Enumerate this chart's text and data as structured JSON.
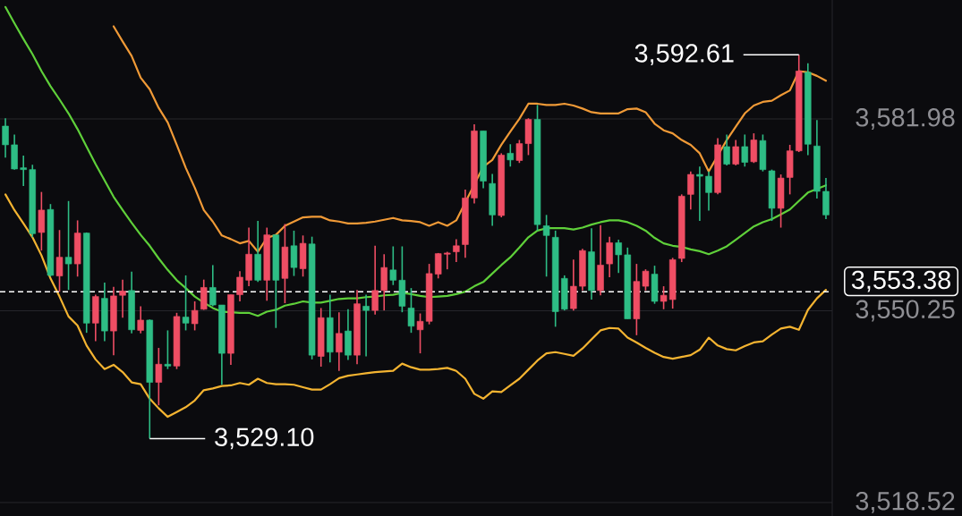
{
  "chart_data": {
    "type": "candlestick",
    "categories": [
      null,
      null,
      null,
      null,
      null,
      null,
      null,
      null,
      null,
      null,
      null,
      null,
      null,
      null,
      null,
      null,
      null,
      null,
      null,
      null,
      null,
      null,
      null,
      null,
      null,
      null,
      null,
      null,
      null,
      null,
      null,
      null,
      null,
      null,
      null,
      null,
      null,
      null,
      null,
      null,
      null,
      null,
      null,
      null,
      null,
      null,
      null,
      null,
      null,
      null,
      null,
      null,
      null,
      null,
      null,
      null,
      null,
      null,
      null,
      null,
      null,
      null,
      null,
      null,
      null,
      null,
      null,
      null,
      null,
      null,
      null,
      null,
      null,
      null,
      null,
      null,
      null,
      null,
      null,
      null,
      null,
      null,
      null,
      null,
      null,
      null,
      null,
      null,
      null,
      null,
      null,
      null
    ],
    "ohlc": [
      [
        3580.8,
        3582.1,
        3575.6,
        3577.7
      ],
      [
        3577.7,
        3579.4,
        3573.6,
        3573.7
      ],
      [
        3573.9,
        3575.9,
        3570.9,
        3573.6
      ],
      [
        3573.6,
        3574.4,
        3562.4,
        3563.0
      ],
      [
        3563.2,
        3569.9,
        3560.2,
        3566.9
      ],
      [
        3567.0,
        3567.9,
        3555.9,
        3556.1
      ],
      [
        3556.0,
        3563.6,
        3553.4,
        3559.1
      ],
      [
        3559.1,
        3568.4,
        3553.7,
        3558.0
      ],
      [
        3558.0,
        3565.2,
        3555.9,
        3563.1
      ],
      [
        3563.1,
        3563.2,
        3546.6,
        3548.2
      ],
      [
        3548.2,
        3552.9,
        3545.2,
        3552.6
      ],
      [
        3552.3,
        3554.9,
        3545.2,
        3546.9
      ],
      [
        3546.9,
        3554.2,
        3542.9,
        3552.7
      ],
      [
        3552.8,
        3555.4,
        3549.1,
        3553.5
      ],
      [
        3553.6,
        3556.7,
        3546.5,
        3547.1
      ],
      [
        3547.0,
        3551.0,
        3546.5,
        3548.7
      ],
      [
        3548.7,
        3548.8,
        3529.1,
        3538.4
      ],
      [
        3538.4,
        3544.1,
        3534.6,
        3541.4
      ],
      [
        3541.4,
        3547.0,
        3540.6,
        3541.1
      ],
      [
        3541.1,
        3549.9,
        3540.6,
        3549.3
      ],
      [
        3549.2,
        3556.1,
        3547.0,
        3548.2
      ],
      [
        3548.1,
        3551.8,
        3547.0,
        3550.3
      ],
      [
        3550.5,
        3555.4,
        3550.4,
        3554.1
      ],
      [
        3554.1,
        3557.8,
        3551.0,
        3551.2
      ],
      [
        3551.2,
        3551.2,
        3538.0,
        3543.2
      ],
      [
        3543.2,
        3552.9,
        3541.3,
        3552.9
      ],
      [
        3552.9,
        3556.8,
        3551.8,
        3555.8
      ],
      [
        3555.3,
        3564.0,
        3554.3,
        3559.6
      ],
      [
        3559.6,
        3565.1,
        3555.0,
        3555.3
      ],
      [
        3555.3,
        3564.0,
        3551.9,
        3562.8
      ],
      [
        3562.8,
        3562.8,
        3547.4,
        3555.3
      ],
      [
        3555.6,
        3564.6,
        3551.5,
        3560.8
      ],
      [
        3561.0,
        3563.5,
        3556.0,
        3557.4
      ],
      [
        3557.2,
        3562.7,
        3555.9,
        3561.4
      ],
      [
        3561.3,
        3562.5,
        3542.2,
        3542.9
      ],
      [
        3542.7,
        3550.7,
        3541.0,
        3549.1
      ],
      [
        3549.1,
        3552.9,
        3541.7,
        3543.4
      ],
      [
        3543.4,
        3550.0,
        3540.3,
        3546.5
      ],
      [
        3546.9,
        3550.5,
        3542.1,
        3542.9
      ],
      [
        3542.9,
        3553.7,
        3541.4,
        3551.4
      ],
      [
        3551.0,
        3552.9,
        3542.7,
        3550.3
      ],
      [
        3550.3,
        3561.0,
        3549.6,
        3553.6
      ],
      [
        3553.6,
        3559.6,
        3550.3,
        3557.4
      ],
      [
        3557.0,
        3560.9,
        3554.5,
        3555.3
      ],
      [
        3555.3,
        3560.9,
        3550.0,
        3551.0
      ],
      [
        3550.7,
        3554.0,
        3546.6,
        3547.7
      ],
      [
        3547.1,
        3549.8,
        3543.2,
        3548.5
      ],
      [
        3548.5,
        3558.0,
        3548.0,
        3556.4
      ],
      [
        3556.3,
        3559.8,
        3555.6,
        3559.7
      ],
      [
        3559.6,
        3560.0,
        3557.1,
        3559.8
      ],
      [
        3560.0,
        3562.1,
        3558.3,
        3561.0
      ],
      [
        3561.2,
        3570.3,
        3559.0,
        3568.9
      ],
      [
        3568.9,
        3581.1,
        3568.0,
        3580.0
      ],
      [
        3580.0,
        3580.0,
        3570.5,
        3571.7
      ],
      [
        3571.3,
        3572.9,
        3564.3,
        3566.1
      ],
      [
        3566.0,
        3576.3,
        3565.7,
        3576.0
      ],
      [
        3576.3,
        3577.8,
        3574.1,
        3575.2
      ],
      [
        3575.1,
        3578.5,
        3574.7,
        3577.9
      ],
      [
        3577.9,
        3582.1,
        3576.0,
        3581.9
      ],
      [
        3581.9,
        3584.3,
        3563.5,
        3564.5
      ],
      [
        3564.3,
        3566.1,
        3555.9,
        3562.7
      ],
      [
        3562.4,
        3563.5,
        3547.6,
        3550.1
      ],
      [
        3555.6,
        3556.1,
        3550.3,
        3550.5
      ],
      [
        3550.6,
        3558.7,
        3550.3,
        3554.3
      ],
      [
        3554.3,
        3560.5,
        3553.6,
        3560.2
      ],
      [
        3560.0,
        3563.9,
        3552.1,
        3553.6
      ],
      [
        3553.6,
        3564.4,
        3552.8,
        3557.8
      ],
      [
        3558.0,
        3562.5,
        3555.8,
        3561.5
      ],
      [
        3561.5,
        3562.0,
        3556.5,
        3559.5
      ],
      [
        3559.5,
        3560.7,
        3548.9,
        3548.9
      ],
      [
        3548.9,
        3558.0,
        3546.2,
        3555.1
      ],
      [
        3554.3,
        3557.1,
        3553.6,
        3556.8
      ],
      [
        3556.3,
        3557.7,
        3551.4,
        3551.8
      ],
      [
        3551.8,
        3554.3,
        3550.5,
        3552.8
      ],
      [
        3552.1,
        3559.0,
        3550.6,
        3558.7
      ],
      [
        3558.9,
        3569.5,
        3558.3,
        3569.2
      ],
      [
        3569.5,
        3573.3,
        3567.0,
        3572.8
      ],
      [
        3572.8,
        3574.1,
        3565.1,
        3572.5
      ],
      [
        3572.5,
        3573.3,
        3566.8,
        3569.8
      ],
      [
        3569.8,
        3578.8,
        3569.5,
        3577.7
      ],
      [
        3577.4,
        3579.4,
        3574.3,
        3574.5
      ],
      [
        3574.5,
        3578.5,
        3574.3,
        3577.4
      ],
      [
        3577.4,
        3579.4,
        3574.1,
        3574.8
      ],
      [
        3574.9,
        3579.6,
        3574.7,
        3578.5
      ],
      [
        3578.4,
        3579.4,
        3573.3,
        3573.6
      ],
      [
        3573.4,
        3573.6,
        3565.1,
        3567.2
      ],
      [
        3567.2,
        3572.8,
        3564.0,
        3572.2
      ],
      [
        3572.3,
        3577.7,
        3569.5,
        3576.7
      ],
      [
        3576.7,
        3592.61,
        3576.5,
        3589.9
      ],
      [
        3589.7,
        3591.2,
        3576.0,
        3577.8
      ],
      [
        3577.5,
        3581.8,
        3568.8,
        3570.0
      ],
      [
        3570.0,
        3572.2,
        3565.4,
        3566.1
      ]
    ],
    "colors": [
      "#2ebd85",
      "#2ebd85",
      "#2ebd85",
      "#2ebd85",
      "#ef4e64",
      "#2ebd85",
      "#ef4e64",
      "#2ebd85",
      "#ef4e64",
      "#2ebd85",
      "#ef4e64",
      "#2ebd85",
      "#ef4e64",
      "#ef4e64",
      "#2ebd85",
      "#ef4e64",
      "#2ebd85",
      "#ef4e64",
      "#2ebd85",
      "#ef4e64",
      "#2ebd85",
      "#ef4e64",
      "#ef4e64",
      "#2ebd85",
      "#2ebd85",
      "#ef4e64",
      "#ef4e64",
      "#ef4e64",
      "#2ebd85",
      "#ef4e64",
      "#2ebd85",
      "#ef4e64",
      "#2ebd85",
      "#ef4e64",
      "#2ebd85",
      "#ef4e64",
      "#2ebd85",
      "#ef4e64",
      "#2ebd85",
      "#ef4e64",
      "#2ebd85",
      "#ef4e64",
      "#ef4e64",
      "#2ebd85",
      "#2ebd85",
      "#2ebd85",
      "#ef4e64",
      "#ef4e64",
      "#ef4e64",
      "#ef4e64",
      "#ef4e64",
      "#ef4e64",
      "#ef4e64",
      "#2ebd85",
      "#2ebd85",
      "#ef4e64",
      "#2ebd85",
      "#ef4e64",
      "#ef4e64",
      "#2ebd85",
      "#2ebd85",
      "#2ebd85",
      "#2ebd85",
      "#ef4e64",
      "#ef4e64",
      "#2ebd85",
      "#ef4e64",
      "#ef4e64",
      "#2ebd85",
      "#2ebd85",
      "#ef4e64",
      "#ef4e64",
      "#2ebd85",
      "#ef4e64",
      "#ef4e64",
      "#ef4e64",
      "#ef4e64",
      "#2ebd85",
      "#2ebd85",
      "#ef4e64",
      "#2ebd85",
      "#ef4e64",
      "#2ebd85",
      "#ef4e64",
      "#2ebd85",
      "#2ebd85",
      "#ef4e64",
      "#ef4e64",
      "#ef4e64",
      "#2ebd85",
      "#2ebd85",
      "#2ebd85"
    ],
    "series": [
      {
        "type": "line",
        "color": "#f09a37",
        "values": [
          null,
          null,
          null,
          null,
          null,
          null,
          null,
          null,
          null,
          null,
          null,
          null,
          3597.3,
          3594.8,
          3592.4,
          3588.8,
          3586.9,
          3583.8,
          3581.4,
          3577.7,
          3573.9,
          3570.6,
          3566.9,
          3565.0,
          3562.7,
          3562.1,
          3561.4,
          3561.8,
          3560.0,
          3562.3,
          3562.8,
          3564.3,
          3565.0,
          3565.7,
          3565.8,
          3565.8,
          3565.2,
          3565.0,
          3564.7,
          3564.7,
          3564.8,
          3565.0,
          3565.3,
          3565.6,
          3565.2,
          3565.1,
          3564.9,
          3564.3,
          3564.9,
          3564.3,
          3565.2,
          null,
          null,
          3574.1,
          3575.2,
          3577.7,
          3579.9,
          3582.0,
          3584.5,
          3584.5,
          3584.3,
          3584.3,
          3584.5,
          3584.2,
          3583.7,
          3583.1,
          3582.9,
          3582.9,
          3582.9,
          3583.6,
          3583.7,
          3583.1,
          3581.2,
          3580.1,
          3579.6,
          3578.5,
          3577.7,
          3576.3,
          3573.3,
          null,
          3578.5,
          3580.7,
          3582.9,
          3584.2,
          3584.8,
          3585.0,
          3585.9,
          3586.7,
          3589.9,
          3589.7,
          3589.1,
          3588.3
        ]
      },
      {
        "type": "line",
        "color": "#5fd03a",
        "values": [
          3600.5,
          3597.8,
          3595.2,
          3592.7,
          3589.9,
          3587.4,
          3585.2,
          3582.9,
          3580.3,
          3577.4,
          3574.5,
          3571.8,
          3569.1,
          3566.9,
          3564.8,
          3562.8,
          3561.0,
          3558.9,
          3557.0,
          3555.3,
          3554.0,
          3552.6,
          3551.6,
          3550.7,
          3550.1,
          3550.0,
          3549.9,
          3549.9,
          3549.4,
          3550.1,
          3550.4,
          3551.1,
          3551.4,
          3551.8,
          3551.6,
          3551.6,
          3551.9,
          3552.2,
          3552.3,
          3552.3,
          3552.5,
          3552.6,
          3552.8,
          3552.9,
          3553.2,
          3553.0,
          3552.7,
          3552.5,
          3552.6,
          3552.7,
          3553.0,
          3553.4,
          3554.3,
          3555.0,
          3556.4,
          3557.8,
          3559.1,
          3560.7,
          3562.4,
          3563.5,
          3563.9,
          3563.9,
          3563.9,
          3563.7,
          3564.0,
          3564.5,
          3564.9,
          3565.2,
          3565.2,
          3564.9,
          3564.3,
          3563.5,
          3562.3,
          3561.4,
          3561.0,
          3560.8,
          3560.4,
          3560.1,
          3559.6,
          3560.2,
          3560.9,
          3562.0,
          3563.1,
          3564.2,
          3564.9,
          3565.4,
          3566.2,
          3567.0,
          3568.4,
          3569.8,
          3570.4,
          3571.0
        ]
      },
      {
        "type": "line",
        "color": "#f4b431",
        "values": [
          3569.5,
          3566.9,
          3564.7,
          3562.4,
          3559.4,
          3555.6,
          3552.6,
          3549.3,
          3547.8,
          3544.5,
          3542.2,
          3540.6,
          3541.3,
          3540.1,
          3538.4,
          3538.1,
          3535.7,
          3534.1,
          3532.7,
          3533.5,
          3534.3,
          3535.4,
          3537.1,
          3537.4,
          3537.8,
          3537.9,
          3538.3,
          3538.0,
          3539.0,
          3538.3,
          3538.1,
          3538.1,
          3538.0,
          3537.6,
          3537.2,
          3537.2,
          3538.1,
          3539.1,
          3539.5,
          3539.7,
          3539.9,
          3540.1,
          3540.2,
          3540.3,
          3541.5,
          3540.9,
          3540.5,
          3540.5,
          3540.6,
          3540.8,
          3540.3,
          3539.0,
          3536.5,
          3535.7,
          3536.9,
          3536.8,
          3537.9,
          3539.0,
          3540.5,
          3542.0,
          3543.2,
          3543.4,
          3543.1,
          3542.8,
          3544.0,
          3545.5,
          3547.0,
          3547.4,
          3547.3,
          3545.8,
          3545.0,
          3544.1,
          3543.3,
          3542.6,
          3542.3,
          3542.6,
          3542.9,
          3543.8,
          3545.8,
          3544.5,
          3543.9,
          3543.7,
          3544.4,
          3545.0,
          3545.2,
          3546.3,
          3547.3,
          3547.6,
          3547.1,
          3550.4,
          3552.3,
          3553.7
        ]
      }
    ],
    "ylim": [
      3516.29,
      3601.66
    ],
    "yticks": [
      {
        "value": 3518.52,
        "label": "3,518.52"
      },
      {
        "value": 3550.25,
        "label": "3,550.25"
      },
      {
        "value": 3581.98,
        "label": "3,581.98"
      }
    ],
    "grid": "y",
    "ref_lines": [
      {
        "axis": "y",
        "value": 3553.38,
        "label": "3,553.38",
        "color": "#ffffff",
        "line_style": "dashed"
      }
    ],
    "annotations": [
      "3,592.61",
      "3,529.10"
    ]
  }
}
